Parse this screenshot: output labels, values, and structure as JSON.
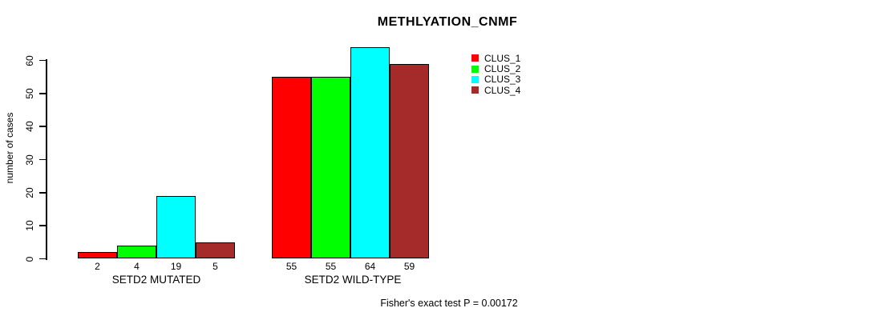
{
  "title": "METHLYATION_CNMF",
  "ylabel": "number of cases",
  "caption": "Fisher's exact test P = 0.00172",
  "chart_data": {
    "type": "bar",
    "title": "METHLYATION_CNMF",
    "ylabel": "number of cases",
    "xlabel": "",
    "categories": [
      "SETD2 MUTATED",
      "SETD2 WILD-TYPE"
    ],
    "series": [
      {
        "name": "CLUS_1",
        "color": "#FF0000",
        "values": [
          2,
          55
        ]
      },
      {
        "name": "CLUS_2",
        "color": "#00FF00",
        "values": [
          4,
          55
        ]
      },
      {
        "name": "CLUS_3",
        "color": "#00FFFF",
        "values": [
          19,
          64
        ]
      },
      {
        "name": "CLUS_4",
        "color": "#A52A2A",
        "values": [
          5,
          59
        ]
      }
    ],
    "bar_value_labels": [
      [
        "2",
        "4",
        "19",
        "5"
      ],
      [
        "55",
        "55",
        "64",
        "59"
      ]
    ],
    "yticks": [
      0,
      10,
      20,
      30,
      40,
      50,
      60
    ],
    "ylim": [
      0,
      65
    ],
    "grid": false,
    "legend_position": "top-right",
    "legend_entries": [
      "CLUS_1",
      "CLUS_2",
      "CLUS_3",
      "CLUS_4"
    ],
    "annotation": "Fisher's exact test P = 0.00172"
  }
}
